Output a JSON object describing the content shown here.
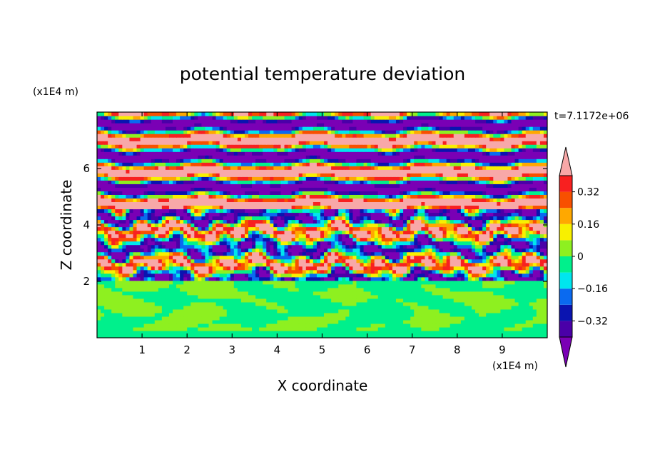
{
  "chart_data": {
    "type": "heatmap",
    "title": "potential temperature deviation",
    "time_label": "t=7.1172e+06",
    "xlabel": "X coordinate",
    "ylabel": "Z coordinate",
    "x_unit": "(x1E4 m)",
    "y_unit": "(x1E4 m)",
    "xlim": [
      0,
      10
    ],
    "ylim": [
      0,
      8
    ],
    "x_ticks": [
      "1",
      "2",
      "3",
      "4",
      "5",
      "6",
      "7",
      "8",
      "9"
    ],
    "y_ticks": [
      "2",
      "4",
      "6"
    ],
    "colorbar": {
      "levels": [
        -0.4,
        -0.32,
        -0.24,
        -0.16,
        -0.08,
        0,
        0.08,
        0.16,
        0.24,
        0.32,
        0.4
      ],
      "tick_labels": [
        "0.32",
        "0.16",
        "0",
        "-0.16",
        "-0.32"
      ],
      "colors_low_to_high": [
        "#7a00b5",
        "#4a00a8",
        "#0a14b0",
        "#0a6af0",
        "#00e6ee",
        "#00f08c",
        "#8ef020",
        "#f8f000",
        "#ffa800",
        "#f85000",
        "#f82020",
        "#f8a8a8"
      ],
      "extend": "both"
    },
    "field_description_regions": [
      {
        "z_range": [
          0,
          2.0
        ],
        "pattern": "smooth",
        "dominant_levels": [
          0,
          0.08
        ]
      },
      {
        "z_range": [
          2.0,
          4.5
        ],
        "pattern": "turbulent mixed",
        "dominant_levels": [
          -0.4,
          0.4
        ]
      },
      {
        "z_range": [
          4.5,
          8.0
        ],
        "pattern": "horizontal bands",
        "dominant_levels": [
          -0.4,
          0.4
        ]
      }
    ]
  }
}
